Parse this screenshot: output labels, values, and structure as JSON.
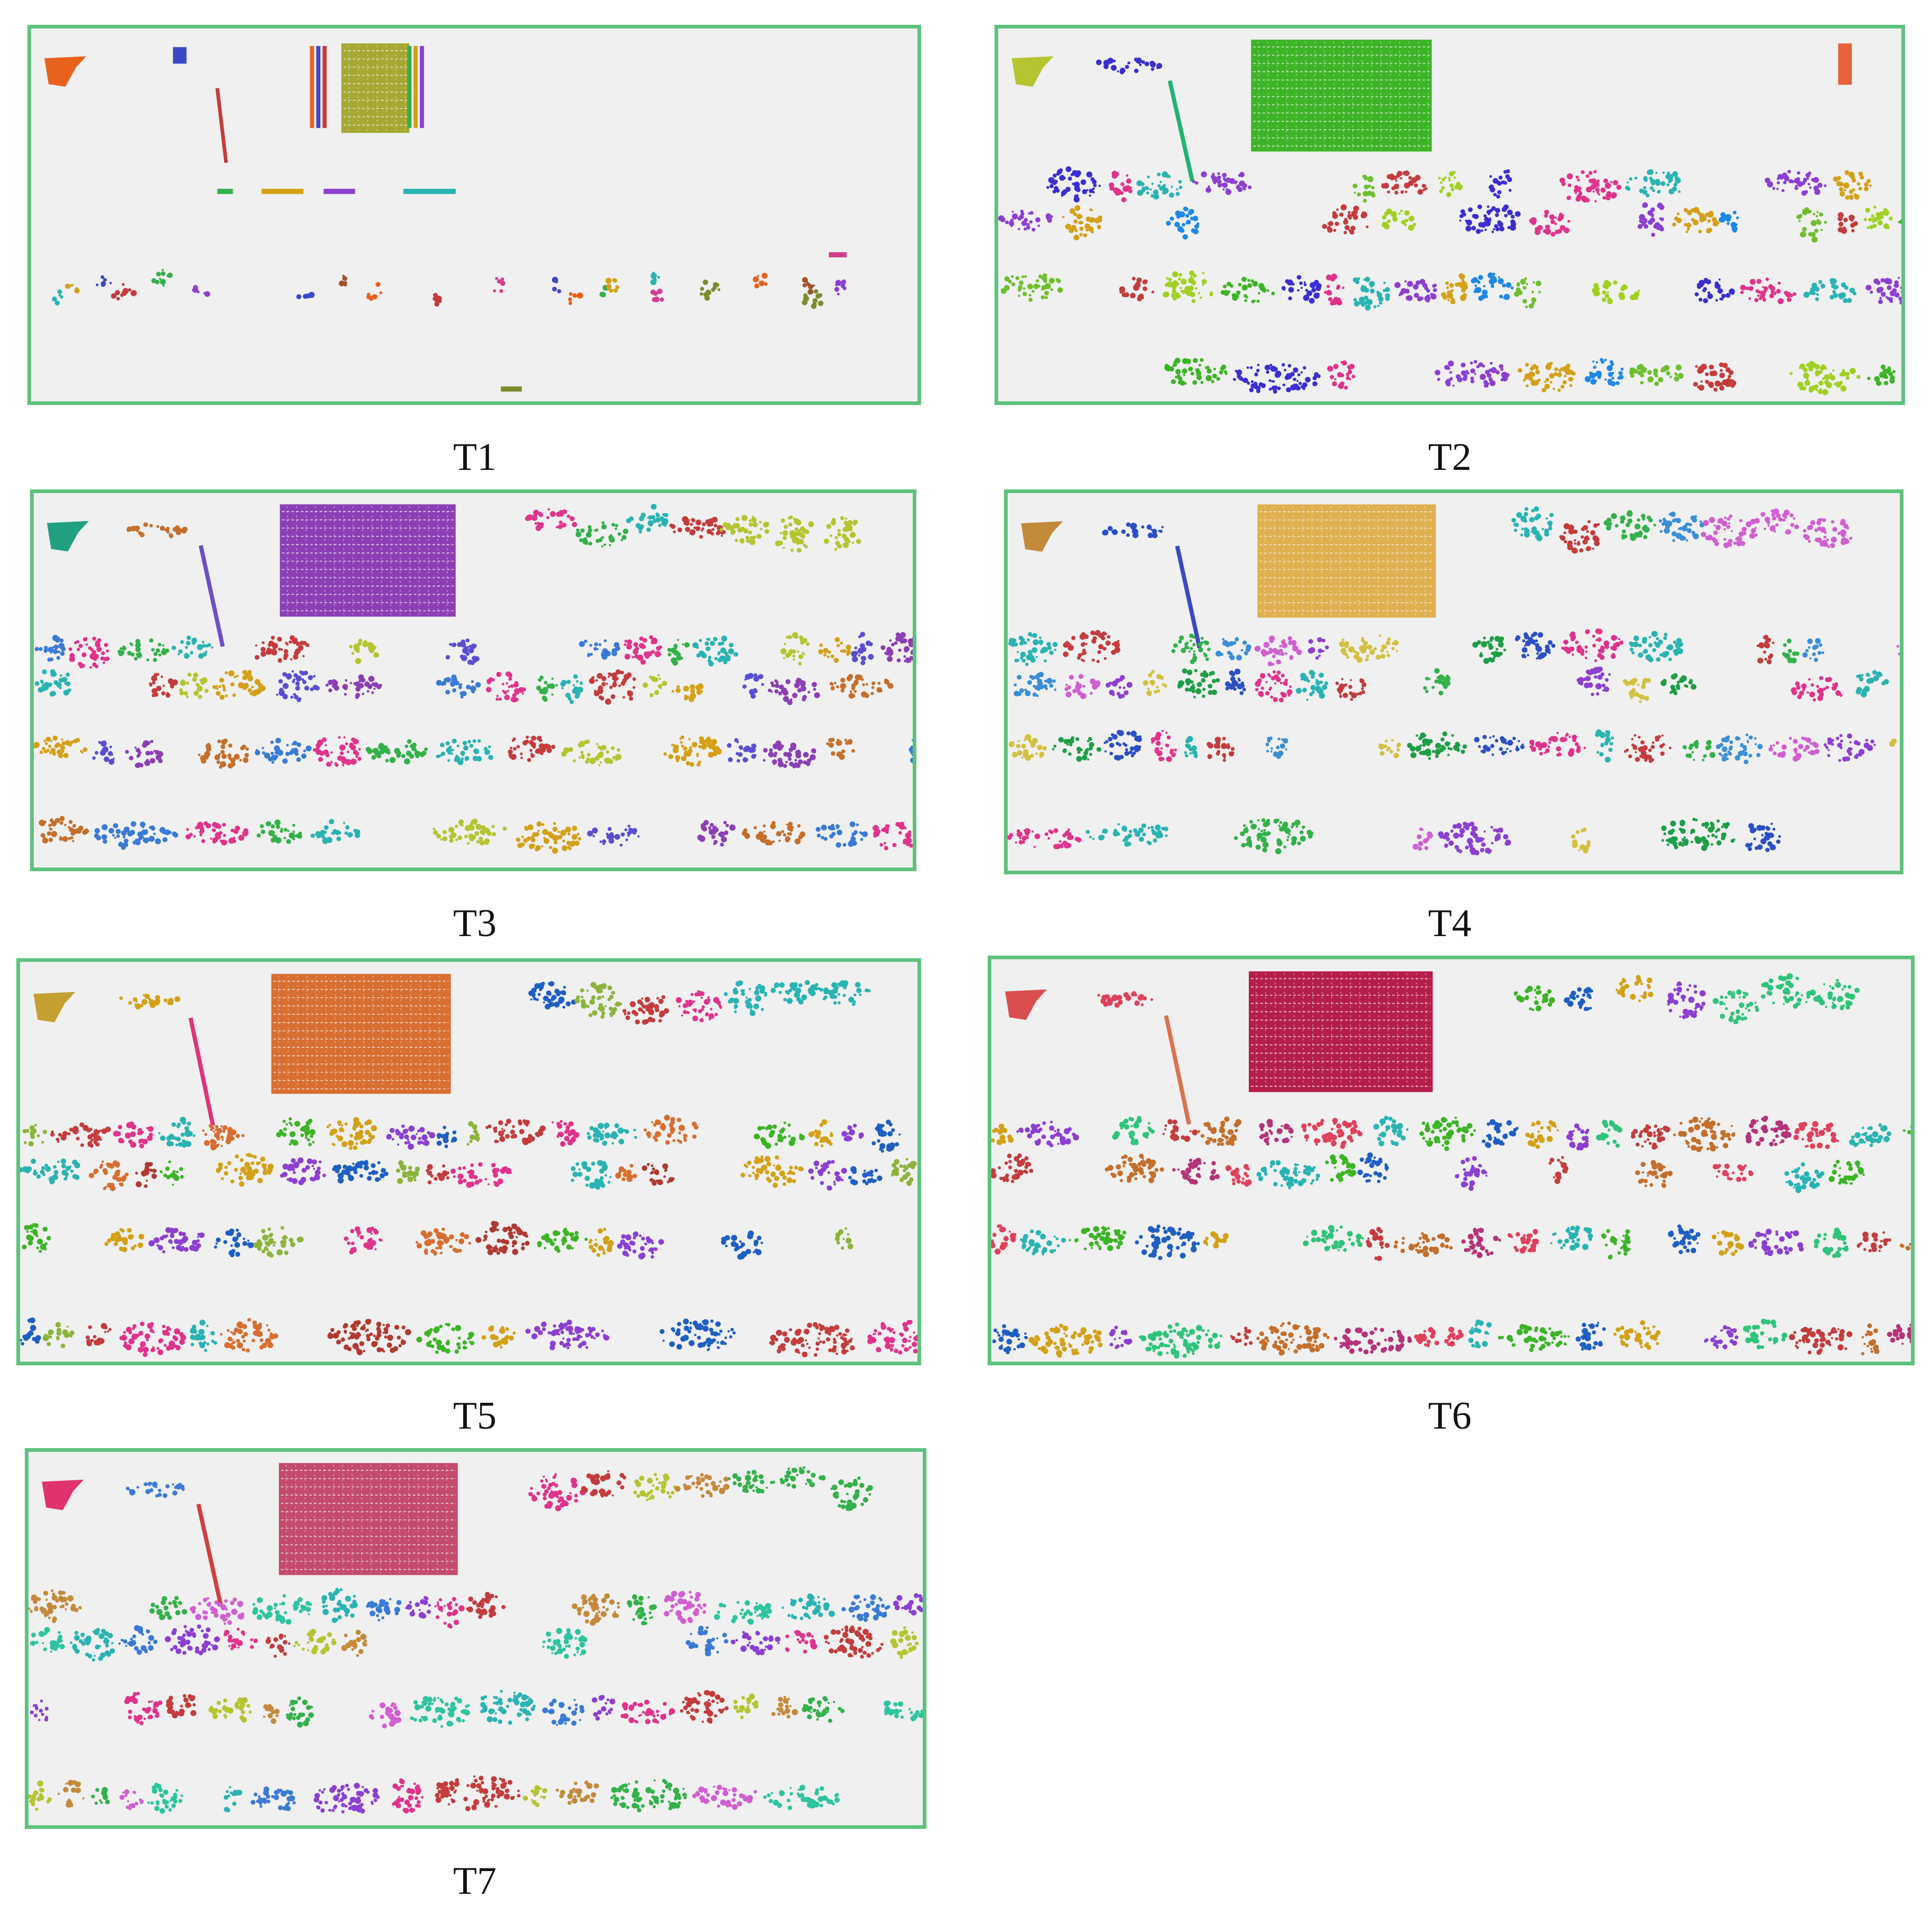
{
  "figure": {
    "frame_color": "#5ec27d",
    "background_color": "#f0f0f0",
    "panels": [
      {
        "id": "T1",
        "label": "T1",
        "building_color": "#a6a832",
        "tower_color": "#c43c3c",
        "sign_color": "#e8621e",
        "palette": [
          "#e8621e",
          "#3a49c4",
          "#c43c3c",
          "#33b14a",
          "#d4a017",
          "#8c3fd1",
          "#2ab3b3",
          "#d13f8c",
          "#7a8c2f",
          "#a0522d"
        ]
      },
      {
        "id": "T2",
        "label": "T2",
        "building_color": "#3cb426",
        "tower_color": "#22b46e",
        "sign_color": "#b5c430",
        "palette": [
          "#3cb426",
          "#3a2fd1",
          "#e0338c",
          "#2ab3b3",
          "#8c3fd1",
          "#d4a017",
          "#1e88e5",
          "#6fbf2f",
          "#c43c3c",
          "#a0d022"
        ]
      },
      {
        "id": "T3",
        "label": "T3",
        "building_color": "#8c3fb5",
        "tower_color": "#6c4fc4",
        "sign_color": "#20a080",
        "palette": [
          "#8c3fb5",
          "#c46f2b",
          "#3a7bd5",
          "#e0338c",
          "#33b14a",
          "#2ab3b3",
          "#c43c3c",
          "#b5c430",
          "#d4a017",
          "#5a4fd1"
        ]
      },
      {
        "id": "T4",
        "label": "T4",
        "building_color": "#e0b050",
        "tower_color": "#3a49c4",
        "sign_color": "#c48a3c",
        "palette": [
          "#1e9e46",
          "#2b4fc4",
          "#e0338c",
          "#2ab3b3",
          "#c43c3c",
          "#33b14a",
          "#3a8fd5",
          "#d15fd1",
          "#8c3fd1",
          "#d4c040"
        ]
      },
      {
        "id": "T5",
        "label": "T5",
        "building_color": "#d86e30",
        "tower_color": "#e0337a",
        "sign_color": "#c4a030",
        "palette": [
          "#3cb426",
          "#d4a017",
          "#8c3fd1",
          "#1e5fc4",
          "#8cb43c",
          "#c43c3c",
          "#e0338c",
          "#2ab3b3",
          "#d86e30",
          "#b03a30"
        ]
      },
      {
        "id": "T6",
        "label": "T6",
        "building_color": "#b51e4a",
        "tower_color": "#d9734f",
        "sign_color": "#d94f4f",
        "palette": [
          "#b5337a",
          "#e0415a",
          "#2ab3b3",
          "#3cb426",
          "#1e5fc4",
          "#d4a017",
          "#8c3fd1",
          "#2ec47a",
          "#c43c3c",
          "#c46f2b"
        ]
      },
      {
        "id": "T7",
        "label": "T7",
        "building_color": "#c44a6e",
        "tower_color": "#d13f3f",
        "sign_color": "#e0336e",
        "palette": [
          "#2ab3b3",
          "#3a7bd5",
          "#8c3fd1",
          "#e0338c",
          "#c43c3c",
          "#b5c430",
          "#c48a3c",
          "#33b14a",
          "#d15fd1",
          "#2ec4a0"
        ]
      }
    ]
  }
}
